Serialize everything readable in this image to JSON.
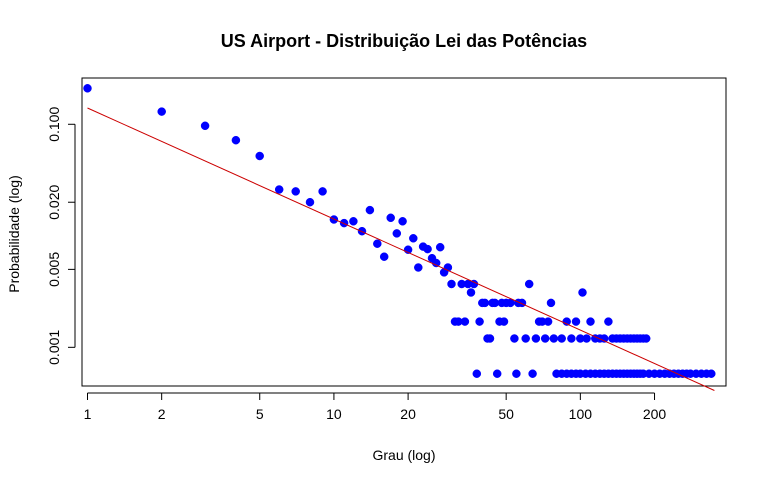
{
  "chart_data": {
    "type": "scatter",
    "title": "US Airport - Distribuição Lei das Potências",
    "xlabel": "Grau (log)",
    "ylabel": "Probabilidade (log)",
    "x_scale": "log",
    "y_scale": "log",
    "xlim": [
      0.95,
      390
    ],
    "ylim": [
      0.00045,
      0.26
    ],
    "x_ticks": [
      1,
      2,
      5,
      10,
      20,
      50,
      100,
      200
    ],
    "x_tick_labels": [
      "1",
      "2",
      "5",
      "10",
      "20",
      "50",
      "100",
      "200"
    ],
    "y_ticks": [
      0.001,
      0.005,
      0.02,
      0.1
    ],
    "y_tick_labels": [
      "0.001",
      "0.005",
      "0.020",
      "0.100"
    ],
    "grid": false,
    "series": [
      {
        "type": "scatter",
        "color": "#0000ff",
        "points": [
          [
            1,
            0.21
          ],
          [
            2,
            0.13
          ],
          [
            3,
            0.097
          ],
          [
            4,
            0.072
          ],
          [
            5,
            0.052
          ],
          [
            6,
            0.026
          ],
          [
            7,
            0.025
          ],
          [
            8,
            0.02
          ],
          [
            9,
            0.025
          ],
          [
            10,
            0.014
          ],
          [
            11,
            0.013
          ],
          [
            12,
            0.0135
          ],
          [
            13,
            0.011
          ],
          [
            14,
            0.017
          ],
          [
            15,
            0.0085
          ],
          [
            16,
            0.0065
          ],
          [
            17,
            0.0145
          ],
          [
            18,
            0.0105
          ],
          [
            19,
            0.0135
          ],
          [
            20,
            0.0075
          ],
          [
            21,
            0.0095
          ],
          [
            22,
            0.0052
          ],
          [
            23,
            0.008
          ],
          [
            24,
            0.0076
          ],
          [
            25,
            0.0063
          ],
          [
            26,
            0.0057
          ],
          [
            27,
            0.0079
          ],
          [
            28,
            0.0047
          ],
          [
            29,
            0.0052
          ],
          [
            30,
            0.0037
          ],
          [
            31,
            0.0017
          ],
          [
            32,
            0.0017
          ],
          [
            33,
            0.0037
          ],
          [
            34,
            0.0017
          ],
          [
            35,
            0.0037
          ],
          [
            36,
            0.0031
          ],
          [
            37,
            0.0037
          ],
          [
            38,
            0.00058
          ],
          [
            39,
            0.0017
          ],
          [
            40,
            0.0025
          ],
          [
            41,
            0.0025
          ],
          [
            42,
            0.0012
          ],
          [
            43,
            0.0012
          ],
          [
            44,
            0.0025
          ],
          [
            45,
            0.0025
          ],
          [
            46,
            0.00058
          ],
          [
            47,
            0.0017
          ],
          [
            48,
            0.0025
          ],
          [
            49,
            0.0017
          ],
          [
            50,
            0.0025
          ],
          [
            52,
            0.0025
          ],
          [
            54,
            0.0012
          ],
          [
            55,
            0.00058
          ],
          [
            56,
            0.0025
          ],
          [
            58,
            0.0025
          ],
          [
            60,
            0.0012
          ],
          [
            62,
            0.0037
          ],
          [
            64,
            0.00058
          ],
          [
            66,
            0.0012
          ],
          [
            68,
            0.0017
          ],
          [
            70,
            0.0017
          ],
          [
            72,
            0.0012
          ],
          [
            74,
            0.0017
          ],
          [
            76,
            0.0025
          ],
          [
            78,
            0.0012
          ],
          [
            80,
            0.00058
          ],
          [
            84,
            0.0012
          ],
          [
            88,
            0.0017
          ],
          [
            92,
            0.0012
          ],
          [
            96,
            0.0017
          ],
          [
            100,
            0.0012
          ],
          [
            102,
            0.0031
          ],
          [
            106,
            0.0012
          ],
          [
            110,
            0.0017
          ],
          [
            115,
            0.0012
          ],
          [
            120,
            0.0012
          ],
          [
            125,
            0.0012
          ],
          [
            130,
            0.0017
          ],
          [
            135,
            0.0012
          ],
          [
            140,
            0.0012
          ],
          [
            145,
            0.0012
          ],
          [
            150,
            0.0012
          ],
          [
            155,
            0.0012
          ],
          [
            160,
            0.0012
          ],
          [
            165,
            0.0012
          ],
          [
            170,
            0.0012
          ],
          [
            175,
            0.0012
          ],
          [
            180,
            0.0012
          ],
          [
            185,
            0.0012
          ],
          [
            84,
            0.00058
          ],
          [
            88,
            0.00058
          ],
          [
            92,
            0.00058
          ],
          [
            96,
            0.00058
          ],
          [
            100,
            0.00058
          ],
          [
            105,
            0.00058
          ],
          [
            110,
            0.00058
          ],
          [
            115,
            0.00058
          ],
          [
            120,
            0.00058
          ],
          [
            125,
            0.00058
          ],
          [
            130,
            0.00058
          ],
          [
            135,
            0.00058
          ],
          [
            140,
            0.00058
          ],
          [
            145,
            0.00058
          ],
          [
            150,
            0.00058
          ],
          [
            155,
            0.00058
          ],
          [
            160,
            0.00058
          ],
          [
            165,
            0.00058
          ],
          [
            170,
            0.00058
          ],
          [
            175,
            0.00058
          ],
          [
            180,
            0.00058
          ],
          [
            190,
            0.00058
          ],
          [
            200,
            0.00058
          ],
          [
            210,
            0.00058
          ],
          [
            220,
            0.00058
          ],
          [
            230,
            0.00058
          ],
          [
            240,
            0.00058
          ],
          [
            250,
            0.00058
          ],
          [
            260,
            0.00058
          ],
          [
            270,
            0.00058
          ],
          [
            280,
            0.00058
          ],
          [
            295,
            0.00058
          ],
          [
            310,
            0.00058
          ],
          [
            325,
            0.00058
          ],
          [
            340,
            0.00058
          ]
        ]
      },
      {
        "type": "line",
        "color": "#cc0000",
        "x": [
          1,
          350
        ],
        "y": [
          0.14,
          0.00041
        ]
      }
    ]
  }
}
